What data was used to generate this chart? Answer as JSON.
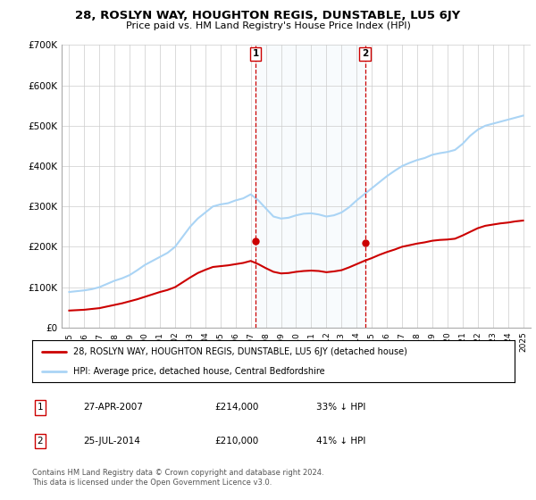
{
  "title": "28, ROSLYN WAY, HOUGHTON REGIS, DUNSTABLE, LU5 6JY",
  "subtitle": "Price paid vs. HM Land Registry's House Price Index (HPI)",
  "background_color": "#ffffff",
  "plot_bg_color": "#ffffff",
  "grid_color": "#cccccc",
  "hpi_color": "#aad4f5",
  "price_color": "#cc0000",
  "sale1_date_x": 2007.32,
  "sale1_price": 214000,
  "sale1_label": "1",
  "sale1_text": "27-APR-2007",
  "sale1_amount": "£214,000",
  "sale1_hpi": "33% ↓ HPI",
  "sale2_date_x": 2014.56,
  "sale2_price": 210000,
  "sale2_label": "2",
  "sale2_text": "25-JUL-2014",
  "sale2_amount": "£210,000",
  "sale2_hpi": "41% ↓ HPI",
  "ylim_min": 0,
  "ylim_max": 700000,
  "xlim_min": 1994.5,
  "xlim_max": 2025.5,
  "yticks": [
    0,
    100000,
    200000,
    300000,
    400000,
    500000,
    600000,
    700000
  ],
  "ytick_labels": [
    "£0",
    "£100K",
    "£200K",
    "£300K",
    "£400K",
    "£500K",
    "£600K",
    "£700K"
  ],
  "xticks": [
    1995,
    1996,
    1997,
    1998,
    1999,
    2000,
    2001,
    2002,
    2003,
    2004,
    2005,
    2006,
    2007,
    2008,
    2009,
    2010,
    2011,
    2012,
    2013,
    2014,
    2015,
    2016,
    2017,
    2018,
    2019,
    2020,
    2021,
    2022,
    2023,
    2024,
    2025
  ],
  "legend_entry1": "28, ROSLYN WAY, HOUGHTON REGIS, DUNSTABLE, LU5 6JY (detached house)",
  "legend_entry2": "HPI: Average price, detached house, Central Bedfordshire",
  "footer": "Contains HM Land Registry data © Crown copyright and database right 2024.\nThis data is licensed under the Open Government Licence v3.0.",
  "hpi_years": [
    1995,
    1995.5,
    1996,
    1996.5,
    1997,
    1997.5,
    1998,
    1998.5,
    1999,
    1999.5,
    2000,
    2000.5,
    2001,
    2001.5,
    2002,
    2002.5,
    2003,
    2003.5,
    2004,
    2004.5,
    2005,
    2005.5,
    2006,
    2006.5,
    2007,
    2007.5,
    2008,
    2008.5,
    2009,
    2009.5,
    2010,
    2010.5,
    2011,
    2011.5,
    2012,
    2012.5,
    2013,
    2013.5,
    2014,
    2014.5,
    2015,
    2015.5,
    2016,
    2016.5,
    2017,
    2017.5,
    2018,
    2018.5,
    2019,
    2019.5,
    2020,
    2020.5,
    2021,
    2021.5,
    2022,
    2022.5,
    2023,
    2023.5,
    2024,
    2024.5,
    2025
  ],
  "hpi_values": [
    88000,
    90000,
    92000,
    95000,
    100000,
    108000,
    116000,
    122000,
    130000,
    142000,
    155000,
    165000,
    175000,
    185000,
    200000,
    225000,
    250000,
    270000,
    285000,
    300000,
    305000,
    308000,
    315000,
    320000,
    330000,
    315000,
    295000,
    275000,
    270000,
    272000,
    278000,
    282000,
    283000,
    280000,
    275000,
    278000,
    285000,
    298000,
    315000,
    330000,
    345000,
    360000,
    375000,
    388000,
    400000,
    408000,
    415000,
    420000,
    428000,
    432000,
    435000,
    440000,
    455000,
    475000,
    490000,
    500000,
    505000,
    510000,
    515000,
    520000,
    525000
  ],
  "price_years": [
    1995,
    1995.5,
    1996,
    1996.5,
    1997,
    1997.5,
    1998,
    1998.5,
    1999,
    1999.5,
    2000,
    2000.5,
    2001,
    2001.5,
    2002,
    2002.5,
    2003,
    2003.5,
    2004,
    2004.5,
    2005,
    2005.5,
    2006,
    2006.5,
    2007,
    2007.5,
    2008,
    2008.5,
    2009,
    2009.5,
    2010,
    2010.5,
    2011,
    2011.5,
    2012,
    2012.5,
    2013,
    2013.5,
    2014,
    2014.5,
    2015,
    2015.5,
    2016,
    2016.5,
    2017,
    2017.5,
    2018,
    2018.5,
    2019,
    2019.5,
    2020,
    2020.5,
    2021,
    2021.5,
    2022,
    2022.5,
    2023,
    2023.5,
    2024,
    2024.5,
    2025
  ],
  "price_values": [
    42000,
    43000,
    44000,
    46000,
    48000,
    52000,
    56000,
    60000,
    65000,
    70000,
    76000,
    82000,
    88000,
    93000,
    100000,
    112000,
    124000,
    135000,
    143000,
    150000,
    152000,
    154000,
    157000,
    160000,
    165000,
    157000,
    147000,
    138000,
    134000,
    135000,
    138000,
    140000,
    141000,
    140000,
    137000,
    139000,
    142000,
    149000,
    157000,
    165000,
    172000,
    180000,
    187000,
    193000,
    200000,
    204000,
    208000,
    211000,
    215000,
    217000,
    218000,
    220000,
    228000,
    237000,
    246000,
    252000,
    255000,
    258000,
    260000,
    263000,
    265000
  ],
  "shaded_x_start": 2007.32,
  "shaded_x_end": 2014.56
}
